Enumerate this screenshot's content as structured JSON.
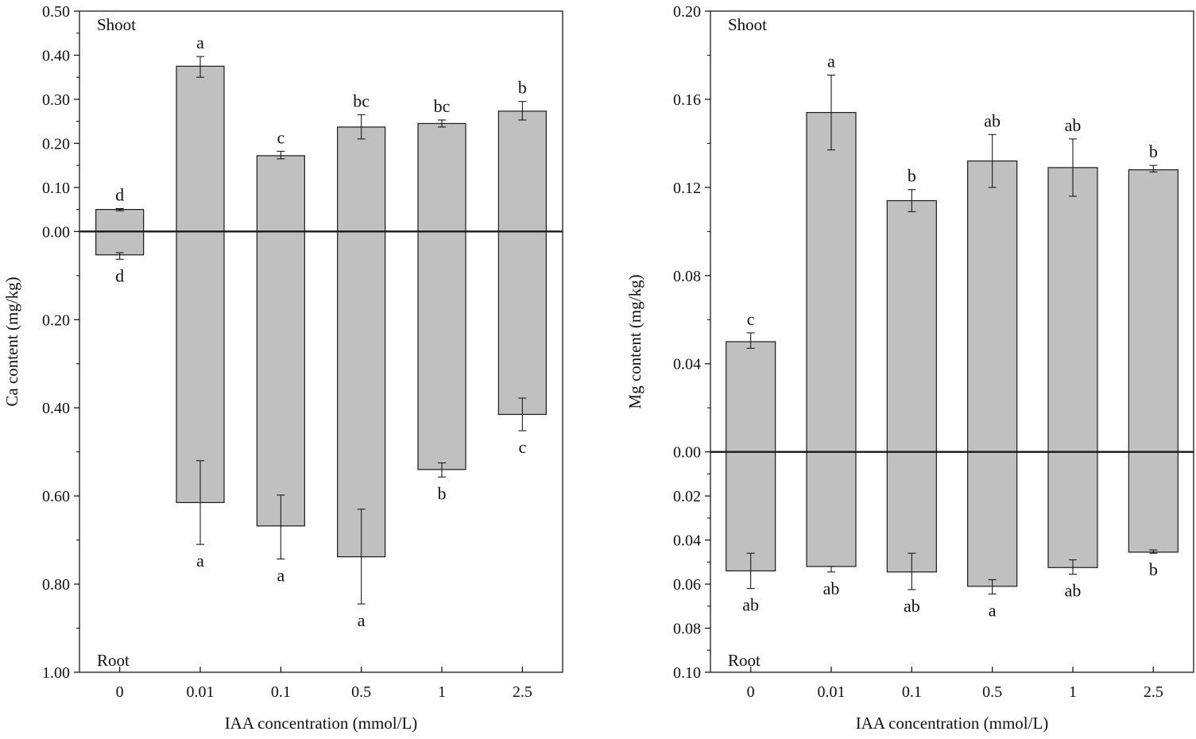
{
  "figure": {
    "bar_color": "#c0c0c0",
    "bar_stroke": "#1a1a1a",
    "axis_color": "#1a1a1a"
  },
  "chart_data": [
    {
      "type": "bar",
      "id": "ca",
      "ylabel": "Ca content (mg/kg)",
      "xlabel": "IAA  concentration (mmol/L)",
      "top_label": "Shoot",
      "bottom_label": "Root",
      "categories": [
        "0",
        "0.01",
        "0.1",
        "0.5",
        "1",
        "2.5"
      ],
      "ylim": [
        -1.0,
        0.5
      ],
      "y_ticks": [
        0.5,
        0.4,
        0.3,
        0.2,
        0.1,
        0.0,
        -0.2,
        -0.4,
        -0.6,
        -0.8,
        -1.0
      ],
      "y_tick_labels": [
        "0.50",
        "0.40",
        "0.30",
        "0.20",
        "0.10",
        "0.00",
        "0.20",
        "0.40",
        "0.60",
        "0.80",
        "1.00"
      ],
      "series": [
        {
          "name": "Shoot",
          "values": [
            0.05,
            0.375,
            0.172,
            0.237,
            0.245,
            0.273
          ],
          "err_low": [
            0.047,
            0.35,
            0.165,
            0.21,
            0.237,
            0.253
          ],
          "err_high": [
            0.052,
            0.397,
            0.182,
            0.265,
            0.253,
            0.295
          ],
          "letters": [
            "d",
            "a",
            "c",
            "bc",
            "bc",
            "b"
          ]
        },
        {
          "name": "Root",
          "values": [
            -0.053,
            -0.615,
            -0.668,
            -0.738,
            -0.54,
            -0.415
          ],
          "err_low": [
            -0.048,
            -0.52,
            -0.598,
            -0.63,
            -0.525,
            -0.378
          ],
          "err_high": [
            -0.063,
            -0.71,
            -0.743,
            -0.845,
            -0.557,
            -0.452
          ],
          "letters": [
            "d",
            "a",
            "a",
            "a",
            "b",
            "c"
          ]
        }
      ]
    },
    {
      "type": "bar",
      "id": "mg",
      "ylabel": "Mg content (mg/kg)",
      "xlabel": "IAA  concentration (mmol/L)",
      "top_label": "Shoot",
      "bottom_label": "Root",
      "categories": [
        "0",
        "0.01",
        "0.1",
        "0.5",
        "1",
        "2.5"
      ],
      "ylim": [
        -0.1,
        0.2
      ],
      "y_ticks": [
        0.2,
        0.16,
        0.12,
        0.08,
        0.04,
        0.0,
        -0.02,
        -0.04,
        -0.06,
        -0.08,
        -0.1
      ],
      "y_tick_labels": [
        "0.20",
        "0.16",
        "0.12",
        "0.08",
        "0.04",
        "0.00",
        "0.02",
        "0.04",
        "0.06",
        "0.08",
        "0.10"
      ],
      "series": [
        {
          "name": "Shoot",
          "values": [
            0.05,
            0.154,
            0.114,
            0.132,
            0.129,
            0.128
          ],
          "err_low": [
            0.047,
            0.137,
            0.109,
            0.12,
            0.116,
            0.127
          ],
          "err_high": [
            0.054,
            0.171,
            0.119,
            0.144,
            0.142,
            0.13
          ],
          "letters": [
            "c",
            "a",
            "b",
            "ab",
            "ab",
            "b"
          ]
        },
        {
          "name": "Root",
          "values": [
            -0.054,
            -0.052,
            -0.0545,
            -0.061,
            -0.0525,
            -0.0455
          ],
          "err_low": [
            -0.046,
            -0.052,
            -0.046,
            -0.058,
            -0.049,
            -0.0445
          ],
          "err_high": [
            -0.062,
            -0.0545,
            -0.0625,
            -0.0645,
            -0.0555,
            -0.046
          ],
          "letters": [
            "ab",
            "ab",
            "ab",
            "a",
            "ab",
            "b"
          ]
        }
      ]
    }
  ]
}
